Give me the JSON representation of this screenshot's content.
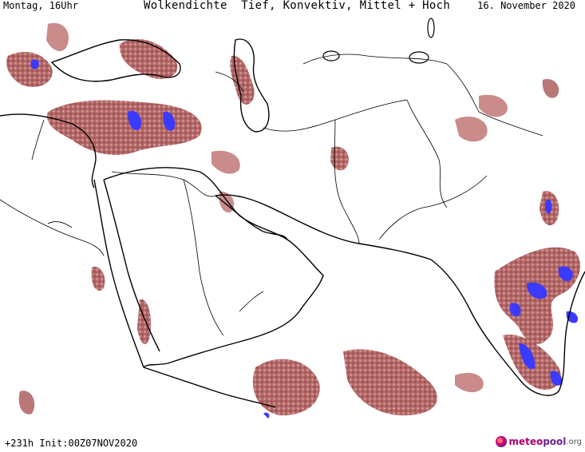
{
  "header": {
    "left_label": "Montag, 16Uhr",
    "title": "Wolkendichte  Tief, Konvektiv, Mittel + Hoch",
    "right_label": "16. November 2020"
  },
  "footer": {
    "init_label": "+231h Init:00Z07NOV2020",
    "logo_part_a": "meteo",
    "logo_part_b": "pool",
    "logo_part_c": ".org",
    "logo_icon": "meteopool-globe-icon"
  },
  "colors": {
    "background": "#ffffff",
    "border_lines": "#000000",
    "cloud_low": "#d9a3a3",
    "cloud_medium": "#b06060",
    "cloud_dense": "#8b3a3a",
    "convective": "#3b3bff"
  }
}
